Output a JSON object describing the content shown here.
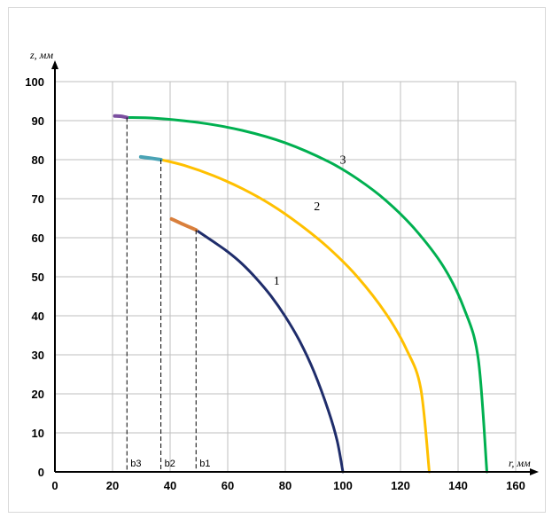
{
  "chart_data": {
    "type": "line",
    "title": "",
    "xlabel": "r, мм",
    "ylabel": "z, мм",
    "xlim": [
      0,
      160
    ],
    "ylim": [
      0,
      100
    ],
    "x_ticks": [
      0,
      20,
      40,
      60,
      80,
      100,
      120,
      140,
      160
    ],
    "y_ticks": [
      0,
      10,
      20,
      30,
      40,
      50,
      60,
      70,
      80,
      90,
      100
    ],
    "grid": true,
    "series": [
      {
        "name": "1",
        "color": "#1f2d6b",
        "x": [
          49.0,
          55,
          60,
          65,
          70,
          75,
          80,
          85,
          90,
          95,
          98,
          100
        ],
        "y": [
          62.0,
          59.0,
          56.4,
          53.3,
          49.5,
          45.1,
          39.8,
          33.5,
          25.6,
          15.6,
          8.0,
          0
        ]
      },
      {
        "name": "2",
        "color": "#ffc000",
        "x": [
          36.8,
          45,
          55,
          65,
          75,
          85,
          95,
          105,
          115,
          122,
          127,
          130
        ],
        "y": [
          80.0,
          78.5,
          75.9,
          72.6,
          68.5,
          63.4,
          57.4,
          50.0,
          40.5,
          31.5,
          21.5,
          0
        ]
      },
      {
        "name": "3",
        "color": "#00b050",
        "x": [
          25.0,
          35,
          50,
          65,
          80,
          95,
          105,
          115,
          125,
          135,
          142,
          147,
          150
        ],
        "y": [
          90.8,
          90.6,
          89.5,
          87.5,
          84.3,
          79.5,
          75.1,
          69.5,
          62.2,
          52.5,
          42.0,
          29.0,
          0
        ]
      },
      {
        "name": "",
        "color": "#d97f3c",
        "x": [
          40.5,
          44,
          49.0
        ],
        "y": [
          64.8,
          63.6,
          62.0
        ]
      },
      {
        "name": "",
        "color": "#4aa3b5",
        "x": [
          29.8,
          33,
          36.8
        ],
        "y": [
          80.7,
          80.4,
          80.0
        ]
      },
      {
        "name": "",
        "color": "#7b4fa0",
        "x": [
          20.8,
          23,
          25.0
        ],
        "y": [
          91.2,
          91.1,
          90.8
        ]
      }
    ],
    "curve_labels": [
      {
        "text": "1",
        "x": 77,
        "y": 48
      },
      {
        "text": "2",
        "x": 91,
        "y": 67
      },
      {
        "text": "3",
        "x": 100,
        "y": 79
      }
    ],
    "markers": [
      {
        "label": "b1",
        "x": 49.0,
        "y": 62.0
      },
      {
        "label": "b2",
        "x": 36.8,
        "y": 80.0
      },
      {
        "label": "b3",
        "x": 25.0,
        "y": 90.8
      }
    ]
  }
}
